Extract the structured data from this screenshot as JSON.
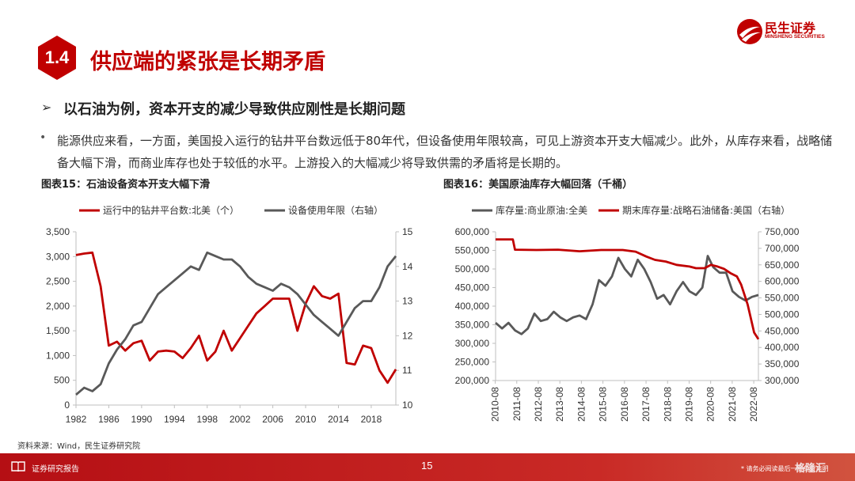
{
  "header": {
    "section_number": "1.4",
    "title": "供应端的紧张是长期矛盾",
    "logo_name": "民生证券",
    "logo_en": "MINSHENG SECURITIES"
  },
  "section_heading": "以石油为例，资本开支的减少导致供应刚性是长期问题",
  "bullet_text": "能源供应来看，一方面，美国投入运行的钻井平台数远低于80年代，但设备使用年限较高，可见上游资本开支大幅减少。此外，从库存来看，战略储备大幅下滑，而商业库存也处于较低的水平。上游投入的大幅减少将导致供需的矛盾将是长期的。",
  "figures": {
    "fig1_title": "图表15：石油设备资本开支大幅下滑",
    "fig2_title": "图表16：美国原油库存大幅回落（千桶）"
  },
  "source_note": "资料来源：Wind，民生证券研究院",
  "footer": {
    "label": "证券研究报告",
    "page": "15",
    "note": "* 请务必阅读最后一页免责声明",
    "watermark": "格隆汇"
  },
  "colors": {
    "brand_red": "#c00000",
    "series_red": "#c00000",
    "series_gray": "#595959"
  },
  "chart_data": [
    {
      "type": "line",
      "title": "图表15：石油设备资本开支大幅下滑",
      "x_ticks": [
        "1982",
        "1986",
        "1990",
        "1994",
        "1998",
        "2002",
        "2006",
        "2010",
        "2014",
        "2018"
      ],
      "xlim": [
        1982,
        2021
      ],
      "ylim_left": [
        0,
        3500
      ],
      "yticks_left": [
        "0",
        "500",
        "1,000",
        "1,500",
        "2,000",
        "2,500",
        "3,000",
        "3,500"
      ],
      "ylim_right": [
        10,
        15
      ],
      "yticks_right": [
        "10",
        "11",
        "12",
        "13",
        "14",
        "15"
      ],
      "legend_position": "top",
      "series": [
        {
          "name": "运行中的钻井平台数:北美（个）",
          "axis": "left",
          "color": "#c00000",
          "x": [
            1982,
            1983,
            1984,
            1985,
            1986,
            1987,
            1988,
            1989,
            1990,
            1991,
            1992,
            1993,
            1994,
            1995,
            1996,
            1997,
            1998,
            1999,
            2000,
            2001,
            2002,
            2003,
            2004,
            2005,
            2006,
            2007,
            2008,
            2009,
            2010,
            2011,
            2012,
            2013,
            2014,
            2015,
            2016,
            2017,
            2018,
            2019,
            2020,
            2021
          ],
          "values": [
            3030,
            3060,
            3080,
            2400,
            1200,
            1280,
            1100,
            1250,
            1300,
            900,
            1080,
            1100,
            1080,
            950,
            1150,
            1400,
            900,
            1080,
            1500,
            1100,
            1350,
            1600,
            1850,
            2000,
            2150,
            2150,
            2150,
            1500,
            2050,
            2400,
            2200,
            2150,
            2250,
            850,
            820,
            1200,
            1150,
            700,
            450,
            720
          ]
        },
        {
          "name": "设备使用年限（右轴）",
          "axis": "right",
          "color": "#595959",
          "x": [
            1982,
            1983,
            1984,
            1985,
            1986,
            1987,
            1988,
            1989,
            1990,
            1991,
            1992,
            1993,
            1994,
            1995,
            1996,
            1997,
            1998,
            1999,
            2000,
            2001,
            2002,
            2003,
            2004,
            2005,
            2006,
            2007,
            2008,
            2009,
            2010,
            2011,
            2012,
            2013,
            2014,
            2015,
            2016,
            2017,
            2018,
            2019,
            2020,
            2021
          ],
          "values": [
            10.3,
            10.5,
            10.4,
            10.6,
            11.2,
            11.6,
            11.9,
            12.3,
            12.4,
            12.8,
            13.2,
            13.4,
            13.6,
            13.8,
            14.0,
            13.9,
            14.4,
            14.3,
            14.2,
            14.2,
            14.0,
            13.7,
            13.5,
            13.4,
            13.3,
            13.5,
            13.4,
            13.2,
            12.9,
            12.6,
            12.4,
            12.2,
            12.0,
            12.4,
            12.8,
            13.0,
            13.0,
            13.4,
            14.0,
            14.3
          ]
        }
      ]
    },
    {
      "type": "line",
      "title": "图表16：美国原油库存大幅回落（千桶）",
      "x_ticks": [
        "2010-08",
        "2011-08",
        "2012-08",
        "2013-08",
        "2014-08",
        "2015-08",
        "2016-08",
        "2017-08",
        "2018-08",
        "2019-08",
        "2020-08",
        "2021-08",
        "2022-08"
      ],
      "xlim": [
        2010.6,
        2022.8
      ],
      "ylim_left": [
        200000,
        600000
      ],
      "yticks_left": [
        "200,000",
        "250,000",
        "300,000",
        "350,000",
        "400,000",
        "450,000",
        "500,000",
        "550,000",
        "600,000"
      ],
      "ylim_right": [
        300000,
        750000
      ],
      "yticks_right": [
        "300,000",
        "350,000",
        "400,000",
        "450,000",
        "500,000",
        "550,000",
        "600,000",
        "650,000",
        "700,000",
        "750,000"
      ],
      "legend_position": "top",
      "series": [
        {
          "name": "库存量:商业原油:全美",
          "axis": "left",
          "color": "#595959",
          "x": [
            2010.6,
            2010.9,
            2011.2,
            2011.5,
            2011.8,
            2012.1,
            2012.4,
            2012.7,
            2013.0,
            2013.3,
            2013.6,
            2013.9,
            2014.2,
            2014.5,
            2014.8,
            2015.1,
            2015.4,
            2015.7,
            2016.0,
            2016.3,
            2016.6,
            2016.9,
            2017.2,
            2017.5,
            2017.8,
            2018.1,
            2018.4,
            2018.7,
            2019.0,
            2019.3,
            2019.6,
            2019.9,
            2020.2,
            2020.45,
            2020.7,
            2021.0,
            2021.3,
            2021.6,
            2021.9,
            2022.2,
            2022.5,
            2022.8
          ],
          "values": [
            355000,
            340000,
            355000,
            335000,
            325000,
            340000,
            380000,
            360000,
            365000,
            385000,
            370000,
            360000,
            370000,
            375000,
            365000,
            405000,
            470000,
            455000,
            480000,
            530000,
            500000,
            480000,
            525000,
            500000,
            465000,
            420000,
            430000,
            405000,
            440000,
            465000,
            440000,
            430000,
            450000,
            535000,
            505000,
            490000,
            490000,
            440000,
            425000,
            415000,
            425000,
            430000
          ]
        },
        {
          "name": "期末库存量:战略石油储备:美国（右轴）",
          "axis": "right",
          "color": "#c00000",
          "x": [
            2010.6,
            2011.4,
            2011.5,
            2012.5,
            2013.5,
            2014.5,
            2015.5,
            2016.5,
            2017.1,
            2017.6,
            2018.0,
            2018.5,
            2019.0,
            2019.6,
            2019.9,
            2020.3,
            2020.6,
            2020.9,
            2021.2,
            2021.5,
            2021.8,
            2022.0,
            2022.3,
            2022.6,
            2022.8
          ],
          "values": [
            727000,
            727000,
            696000,
            695000,
            696000,
            691000,
            695000,
            695000,
            690000,
            675000,
            665000,
            660000,
            650000,
            645000,
            640000,
            640000,
            650000,
            645000,
            638000,
            625000,
            615000,
            590000,
            530000,
            445000,
            425000
          ]
        }
      ]
    }
  ]
}
